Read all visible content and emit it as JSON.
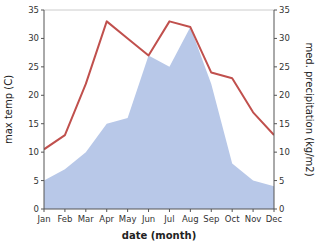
{
  "chart_data": {
    "type": "line",
    "categories": [
      "Jan",
      "Feb",
      "Mar",
      "Apr",
      "May",
      "Jun",
      "Jul",
      "Aug",
      "Sep",
      "Oct",
      "Nov",
      "Dec"
    ],
    "xlabel": "date (month)",
    "ylabel": "max temp (C)",
    "y2label": "med. precipitation (kg/m2)",
    "ylim": [
      0,
      35
    ],
    "yticks": [
      0,
      5,
      10,
      15,
      20,
      25,
      30,
      35
    ],
    "y2lim": [
      0,
      35
    ],
    "y2ticks": [
      0,
      5,
      10,
      15,
      20,
      25,
      30,
      35
    ],
    "grid": false,
    "series": [
      {
        "type": "area",
        "axis": "y2",
        "color": "#b8c8e8",
        "values": [
          5.0,
          7.0,
          10.0,
          15.0,
          16.0,
          27.0,
          25.0,
          32.0,
          22.0,
          8.0,
          5.0,
          4.0
        ]
      },
      {
        "type": "line",
        "color": "#c0504d",
        "values": [
          10.5,
          13.0,
          22.0,
          33.0,
          30.0,
          27.0,
          33.0,
          32.0,
          24.0,
          23.0,
          17.0,
          13.0
        ]
      }
    ]
  }
}
